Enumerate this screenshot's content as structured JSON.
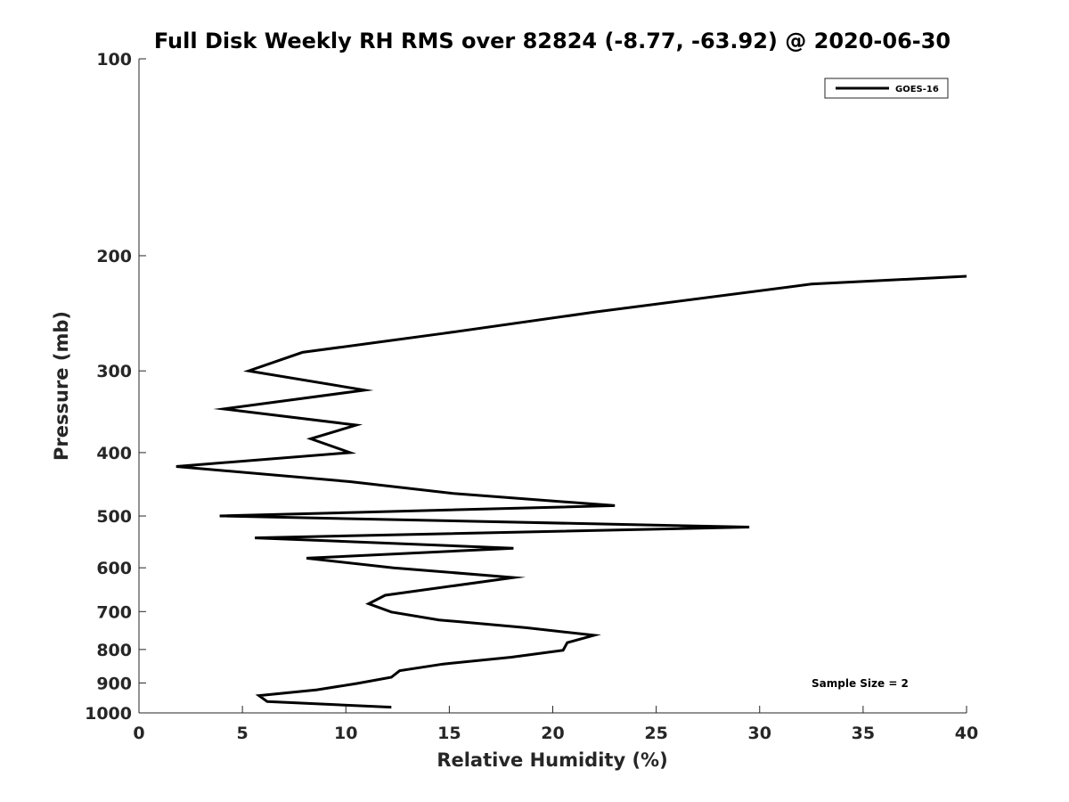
{
  "chart_data": {
    "type": "line",
    "title": "Full Disk Weekly RH RMS over 82824 (-8.77, -63.92) @ 2020-06-30",
    "xlabel": "Relative Humidity (%)",
    "ylabel": "Pressure (mb)",
    "xlim": [
      0,
      40
    ],
    "ylim": [
      1000,
      100
    ],
    "y_scale": "log",
    "grid": false,
    "legend_position": "top-right",
    "x_ticks": [
      0,
      5,
      10,
      15,
      20,
      25,
      30,
      35,
      40
    ],
    "x_tick_labels": [
      "0",
      "5",
      "10",
      "15",
      "20",
      "25",
      "30",
      "35",
      "40"
    ],
    "y_ticks": [
      100,
      200,
      300,
      400,
      500,
      600,
      700,
      800,
      900,
      1000
    ],
    "y_tick_labels": [
      "100",
      "200",
      "300",
      "400",
      "500",
      "600",
      "700",
      "800",
      "900",
      "1000"
    ],
    "series": [
      {
        "name": "GOES-16",
        "color": "#000000",
        "points": [
          [
            40.0,
            215
          ],
          [
            32.5,
            221
          ],
          [
            22.0,
            244
          ],
          [
            14.7,
            263
          ],
          [
            7.9,
            281
          ],
          [
            5.3,
            300
          ],
          [
            10.9,
            321
          ],
          [
            4.1,
            343
          ],
          [
            10.5,
            363
          ],
          [
            8.3,
            381
          ],
          [
            10.2,
            400
          ],
          [
            1.8,
            420
          ],
          [
            10.2,
            443
          ],
          [
            15.2,
            462
          ],
          [
            23.0,
            482
          ],
          [
            3.9,
            500
          ],
          [
            29.5,
            520
          ],
          [
            5.6,
            540
          ],
          [
            18.1,
            560
          ],
          [
            8.1,
            580
          ],
          [
            12.3,
            600
          ],
          [
            18.1,
            621
          ],
          [
            11.9,
            661
          ],
          [
            11.1,
            681
          ],
          [
            12.2,
            701
          ],
          [
            14.5,
            721
          ],
          [
            18.7,
            741
          ],
          [
            22.0,
            761
          ],
          [
            20.7,
            781
          ],
          [
            20.5,
            802
          ],
          [
            18.0,
            822
          ],
          [
            14.7,
            842
          ],
          [
            12.6,
            862
          ],
          [
            12.2,
            882
          ],
          [
            10.5,
            902
          ],
          [
            8.6,
            922
          ],
          [
            5.8,
            941
          ],
          [
            6.2,
            961
          ],
          [
            12.2,
            980
          ]
        ]
      }
    ],
    "annotation": "Sample Size = 2"
  }
}
